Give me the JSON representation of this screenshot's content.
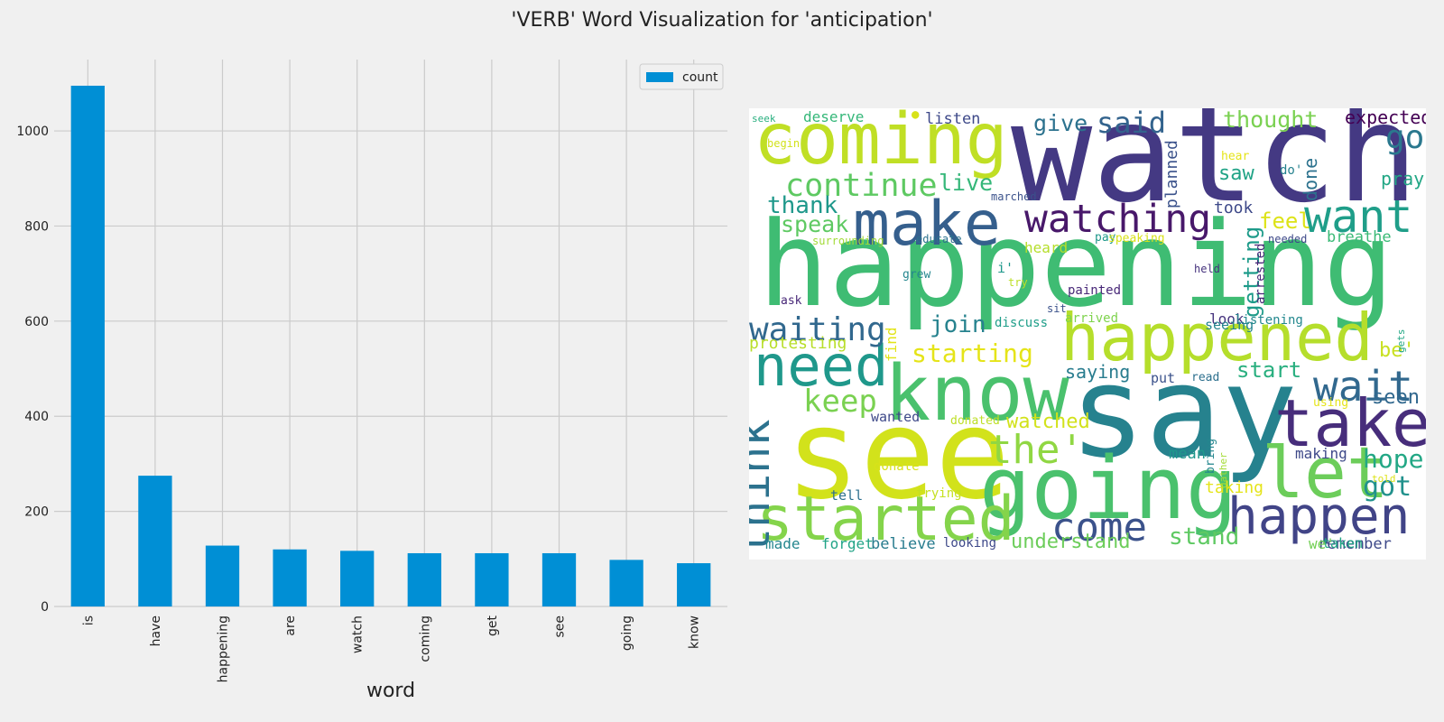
{
  "title": "'VERB' Word Visualization for 'anticipation'",
  "chart_data": [
    {
      "type": "bar",
      "categories": [
        "is",
        "have",
        "happening",
        "are",
        "watch",
        "coming",
        "get",
        "see",
        "going",
        "know"
      ],
      "series": [
        {
          "name": "count",
          "values": [
            1095,
            275,
            128,
            120,
            117,
            112,
            112,
            112,
            98,
            91
          ],
          "color": "#008fd5"
        }
      ],
      "xlabel": "word",
      "ylabel": "",
      "ylim": [
        0,
        1150
      ],
      "yticks": [
        0,
        200,
        400,
        600,
        800,
        1000
      ],
      "grid": true,
      "legend": "top-right"
    }
  ],
  "word_cloud": {
    "words": [
      {
        "text": "happening",
        "color": "#3fbc73"
      },
      {
        "text": "watch",
        "color": "#443983"
      },
      {
        "text": "say",
        "color": "#26828e"
      },
      {
        "text": "see",
        "color": "#d2e21b"
      },
      {
        "text": "coming",
        "color": "#c0df25"
      },
      {
        "text": "going",
        "color": "#4ac16d"
      },
      {
        "text": "know",
        "color": "#4ac16d"
      },
      {
        "text": "started",
        "color": "#84d44b"
      },
      {
        "text": "happened",
        "color": "#b5de2b"
      },
      {
        "text": "make",
        "color": "#355f8d"
      },
      {
        "text": "take",
        "color": "#472d7b"
      },
      {
        "text": "let",
        "color": "#6ccd5a"
      },
      {
        "text": "need",
        "color": "#1f988b"
      },
      {
        "text": "happen",
        "color": "#414487"
      },
      {
        "text": "watching",
        "color": "#48186a"
      },
      {
        "text": "want",
        "color": "#1f9e89"
      },
      {
        "text": "think",
        "color": "#2c728e"
      },
      {
        "text": "come",
        "color": "#3b528b"
      },
      {
        "text": "continue",
        "color": "#5ec962"
      },
      {
        "text": "wait",
        "color": "#31688e"
      },
      {
        "text": "the'",
        "color": "#90d743"
      },
      {
        "text": "waiting",
        "color": "#31688e"
      },
      {
        "text": "keep",
        "color": "#7ad151"
      },
      {
        "text": "go",
        "color": "#2a788e"
      },
      {
        "text": "said",
        "color": "#33638d"
      },
      {
        "text": "got",
        "color": "#21918c"
      },
      {
        "text": "hope",
        "color": "#22a785"
      },
      {
        "text": "starting",
        "color": "#e5e419"
      },
      {
        "text": "live",
        "color": "#35b779"
      },
      {
        "text": "join",
        "color": "#26828e"
      },
      {
        "text": "stand",
        "color": "#5ec962"
      },
      {
        "text": "give",
        "color": "#2c728e"
      },
      {
        "text": "thought",
        "color": "#7ad151"
      },
      {
        "text": "expected",
        "color": "#440154"
      },
      {
        "text": "thank",
        "color": "#1f988b"
      },
      {
        "text": "speak",
        "color": "#5ec962"
      },
      {
        "text": "feel",
        "color": "#dde318"
      },
      {
        "text": "start",
        "color": "#29af7f"
      },
      {
        "text": "seen",
        "color": "#31688e"
      },
      {
        "text": "saying",
        "color": "#287c8e"
      },
      {
        "text": "watched",
        "color": "#d2e21b"
      },
      {
        "text": "understand",
        "color": "#6ccd5a"
      },
      {
        "text": "saw",
        "color": "#20a386"
      },
      {
        "text": "pray",
        "color": "#22a785"
      },
      {
        "text": "took",
        "color": "#3e4989"
      },
      {
        "text": "done",
        "color": "#2c728e"
      },
      {
        "text": "planned",
        "color": "#3b528b"
      },
      {
        "text": "getting",
        "color": "#1e9b8a"
      },
      {
        "text": "be'",
        "color": "#c8e020"
      },
      {
        "text": "breathe",
        "color": "#3aba76"
      },
      {
        "text": "listen",
        "color": "#3e4989"
      },
      {
        "text": "deserve",
        "color": "#35b779"
      },
      {
        "text": "protesting",
        "color": "#b8de29"
      },
      {
        "text": "find",
        "color": "#e2e418"
      },
      {
        "text": "arrested",
        "color": "#482878"
      },
      {
        "text": "remember",
        "color": "#3e4989"
      },
      {
        "text": "believe",
        "color": "#287c8e"
      },
      {
        "text": "making",
        "color": "#3e4989"
      },
      {
        "text": "taking",
        "color": "#e5e419"
      },
      {
        "text": "mean",
        "color": "#1f988b"
      },
      {
        "text": "look",
        "color": "#46337e"
      },
      {
        "text": "heard",
        "color": "#b5de2b"
      },
      {
        "text": "seeing",
        "color": "#25848e"
      },
      {
        "text": "made",
        "color": "#24868e"
      },
      {
        "text": "forget",
        "color": "#20a386"
      },
      {
        "text": "taken",
        "color": "#22a785"
      },
      {
        "text": "tell",
        "color": "#2d708e"
      },
      {
        "text": "put",
        "color": "#3b528b"
      },
      {
        "text": "read",
        "color": "#2d708e"
      },
      {
        "text": "wanted",
        "color": "#3e4989"
      },
      {
        "text": "donated",
        "color": "#bddf26"
      },
      {
        "text": "donate",
        "color": "#d8e219"
      },
      {
        "text": "trying",
        "color": "#c5e021"
      },
      {
        "text": "looking",
        "color": "#3e4989"
      },
      {
        "text": "we'",
        "color": "#73d056"
      },
      {
        "text": "painted",
        "color": "#482878"
      },
      {
        "text": "listening",
        "color": "#23888e"
      },
      {
        "text": "arrived",
        "color": "#7fd34e"
      },
      {
        "text": "discuss",
        "color": "#1f9e89"
      },
      {
        "text": "sit",
        "color": "#3b528b"
      },
      {
        "text": "i'",
        "color": "#1f988b"
      },
      {
        "text": "try",
        "color": "#bddf26"
      },
      {
        "text": "grew",
        "color": "#24868e"
      },
      {
        "text": "ask",
        "color": "#482878"
      },
      {
        "text": "surrounding",
        "color": "#a2da37"
      },
      {
        "text": "educate",
        "color": "#2c728e"
      },
      {
        "text": "pay",
        "color": "#1f988b"
      },
      {
        "text": "speaking",
        "color": "#d8e219"
      },
      {
        "text": "needed",
        "color": "#3e4989"
      },
      {
        "text": "held",
        "color": "#46337e"
      },
      {
        "text": "marched",
        "color": "#3b528b"
      },
      {
        "text": "hear",
        "color": "#e5e419"
      },
      {
        "text": "do'",
        "color": "#26828e"
      },
      {
        "text": "begin",
        "color": "#d2e21b"
      },
      {
        "text": "seek",
        "color": "#29af7f"
      },
      {
        "text": "using",
        "color": "#e5e419"
      },
      {
        "text": "told",
        "color": "#dde318"
      },
      {
        "text": "bring",
        "color": "#24868e"
      },
      {
        "text": "gather",
        "color": "#a5db36"
      },
      {
        "text": "gets",
        "color": "#22a785"
      },
      {
        "text": "●",
        "color": "#d8e219"
      }
    ]
  }
}
